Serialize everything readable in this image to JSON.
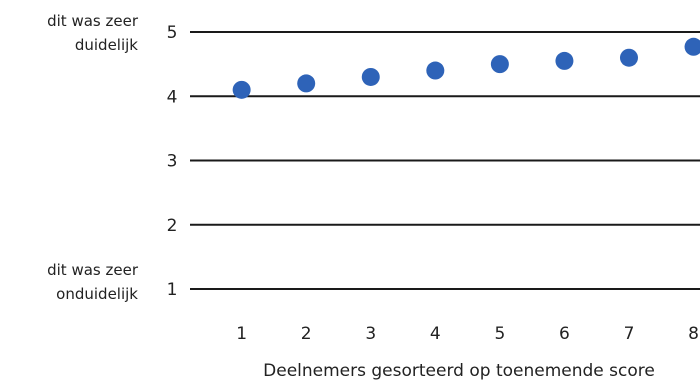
{
  "chart_data": {
    "type": "scatter",
    "title": "",
    "xlabel": "Deelnemers gesorteerd op toenemende score",
    "ylabel": "",
    "x": [
      1,
      2,
      3,
      4,
      5,
      6,
      7,
      8
    ],
    "y": [
      4.1,
      4.2,
      4.3,
      4.4,
      4.5,
      4.55,
      4.6,
      4.77
    ],
    "xlim": [
      0.2,
      8.1
    ],
    "ylim": [
      1,
      5
    ],
    "xticks": [
      "1",
      "2",
      "3",
      "4",
      "5",
      "6",
      "7",
      "8"
    ],
    "yticks": [
      "1",
      "2",
      "3",
      "4",
      "5"
    ],
    "y_anchor_labels": {
      "top": [
        "dit was zeer",
        "duidelijk"
      ],
      "bottom": [
        "dit was zeer",
        "onduidelijk"
      ]
    },
    "grid": "horizontal",
    "legend": "none",
    "colors": {
      "marker": "#2e63b8",
      "gridline": "#1a1a1a",
      "text": "#222222"
    }
  }
}
